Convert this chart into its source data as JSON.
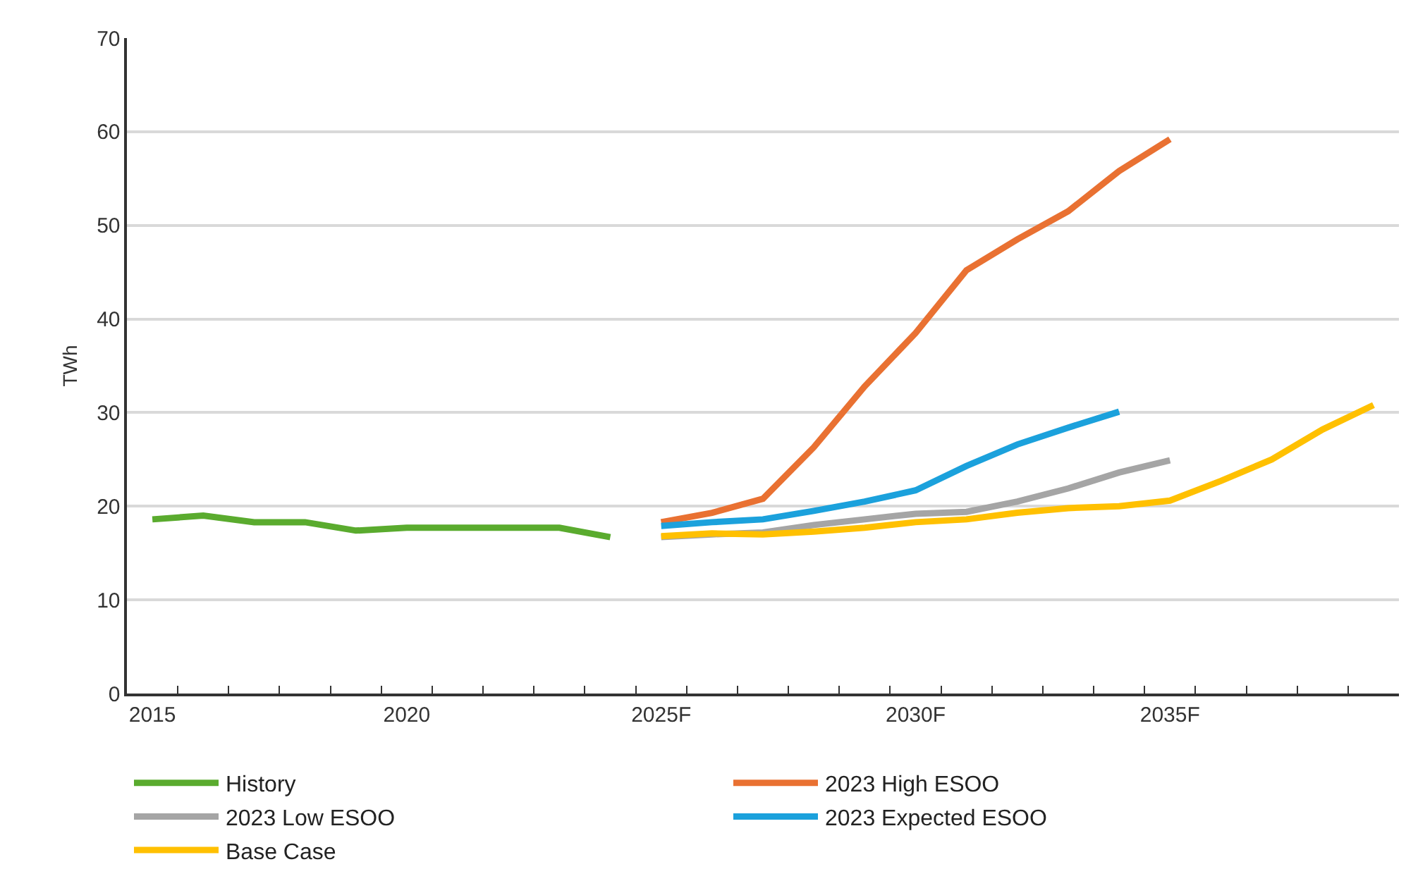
{
  "chart_data": {
    "type": "line",
    "ylabel": "TWh",
    "categories": [
      "2015",
      null,
      null,
      null,
      null,
      "2020",
      null,
      null,
      null,
      null,
      "2025F",
      null,
      null,
      null,
      null,
      "2030F",
      null,
      null,
      null,
      null,
      "2035F",
      null,
      null,
      null,
      null
    ],
    "ylim": [
      0,
      70
    ],
    "yticks": [
      0,
      10,
      20,
      30,
      40,
      50,
      60,
      70
    ],
    "grid": "y",
    "legend": "bottom",
    "line_style": "solid",
    "series": [
      {
        "name": "History",
        "color": "#5aab2e",
        "values": [
          18.6,
          19.0,
          18.3,
          18.3,
          17.4,
          17.7,
          17.7,
          17.7,
          17.7,
          16.7,
          null,
          null,
          null,
          null,
          null,
          null,
          null,
          null,
          null,
          null,
          null,
          null,
          null,
          null,
          null
        ]
      },
      {
        "name": "2023 High ESOO",
        "color": "#e97132",
        "values": [
          null,
          null,
          null,
          null,
          null,
          null,
          null,
          null,
          null,
          null,
          18.3,
          19.3,
          20.8,
          26.3,
          32.8,
          38.5,
          45.2,
          48.5,
          51.5,
          55.8,
          59.2,
          null,
          null,
          null,
          null
        ]
      },
      {
        "name": "2023 Low ESOO",
        "color": "#a5a5a5",
        "values": [
          null,
          null,
          null,
          null,
          null,
          null,
          null,
          null,
          null,
          null,
          16.7,
          17.0,
          17.2,
          18.0,
          18.6,
          19.2,
          19.4,
          20.5,
          21.9,
          23.6,
          24.9,
          null,
          null,
          null,
          null
        ]
      },
      {
        "name": "2023 Expected ESOO",
        "color": "#1ba1dc",
        "values": [
          null,
          null,
          null,
          null,
          null,
          null,
          null,
          null,
          null,
          null,
          17.9,
          18.3,
          18.6,
          19.5,
          20.5,
          21.7,
          24.3,
          26.6,
          28.4,
          30.1,
          null,
          null,
          null,
          null,
          null
        ]
      },
      {
        "name": "Base Case",
        "color": "#ffc000",
        "values": [
          null,
          null,
          null,
          null,
          null,
          null,
          null,
          null,
          null,
          null,
          16.8,
          17.1,
          17.0,
          17.3,
          17.7,
          18.3,
          18.6,
          19.3,
          19.8,
          20.0,
          20.6,
          22.7,
          25.0,
          28.2,
          30.8
        ]
      }
    ]
  }
}
